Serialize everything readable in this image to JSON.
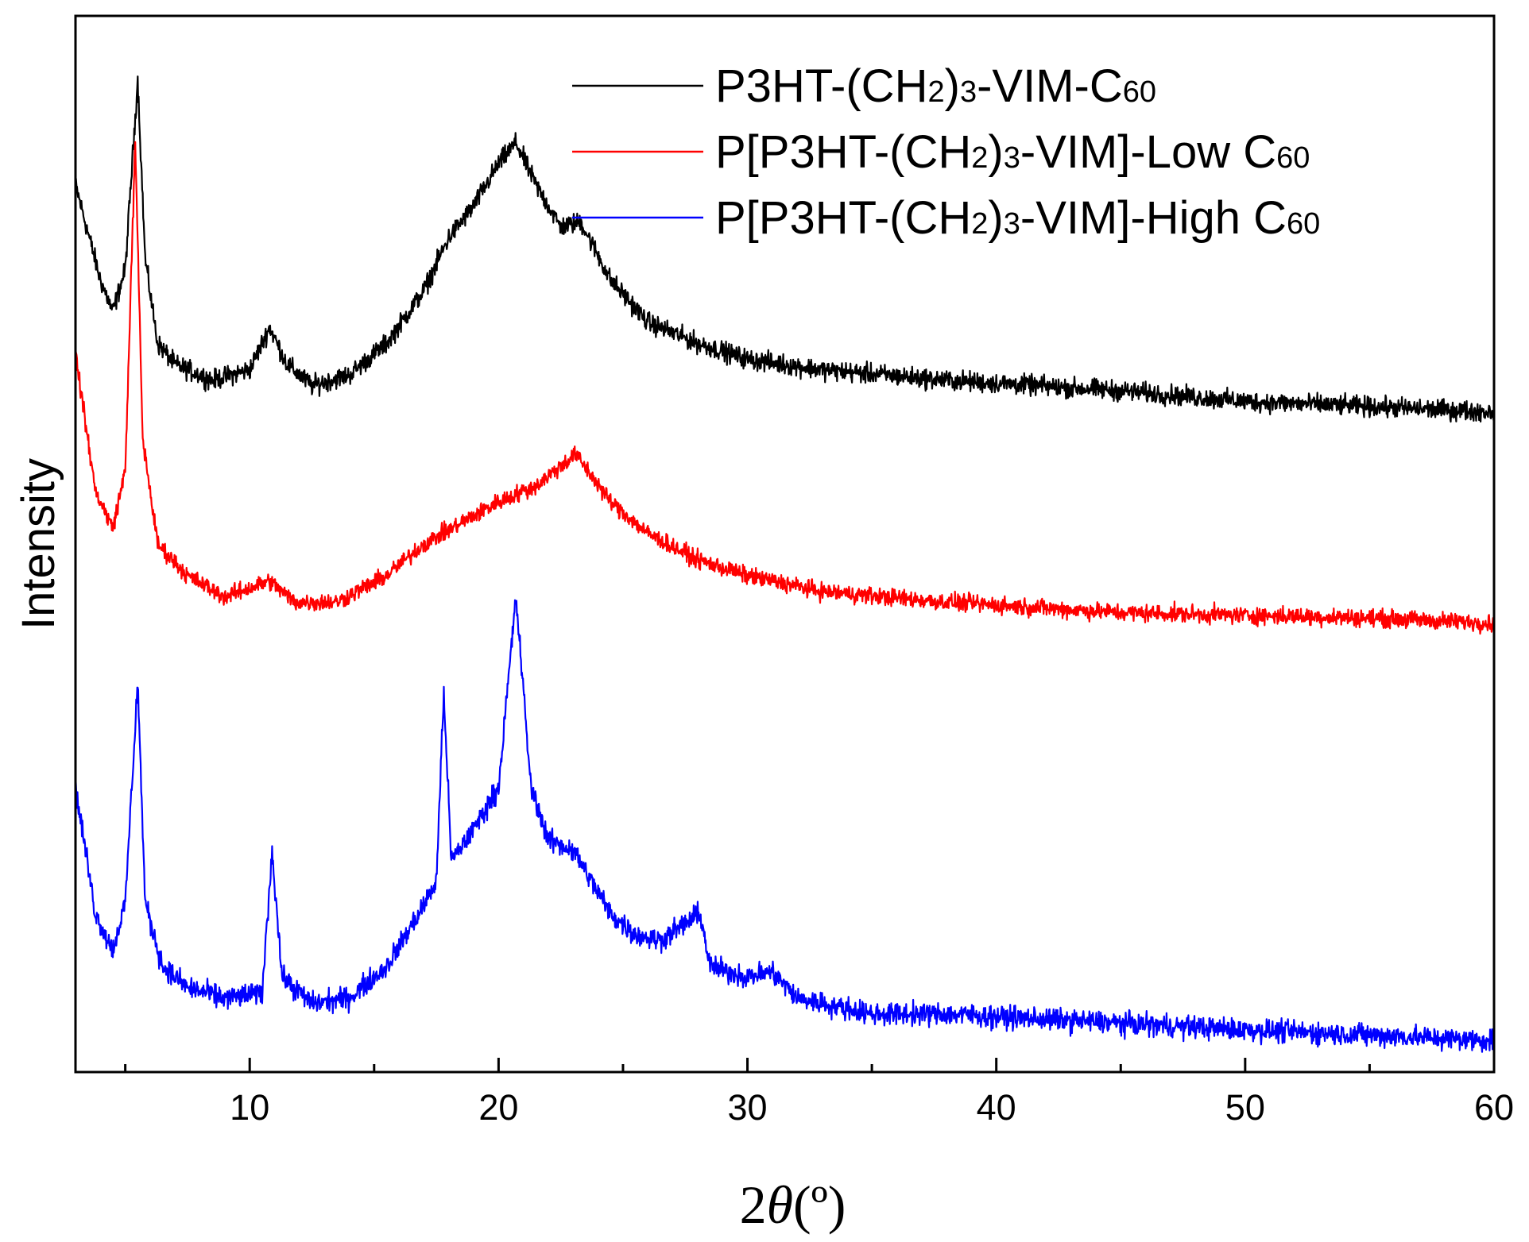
{
  "chart_data": {
    "type": "line",
    "title": "",
    "xlabel_prefix": "2",
    "xlabel_theta": "θ",
    "xlabel_suffix": "(º)",
    "ylabel": "Intensity",
    "xlim": [
      3,
      60
    ],
    "ylim": [
      0,
      100
    ],
    "x_ticks": [
      10,
      20,
      30,
      40,
      50,
      60
    ],
    "x_tick_labels": [
      "10",
      "20",
      "30",
      "40",
      "50",
      "60"
    ],
    "x_minor_ticks": [
      5,
      15,
      25,
      35,
      45,
      55
    ],
    "y_ticks": [],
    "grid": false,
    "legend_position": "top-right",
    "series": [
      {
        "name": "P3HT-(CH2)3-VIM-C60",
        "legend_parts": [
          {
            "t": "P3HT-(CH",
            "sub": false
          },
          {
            "t": "2",
            "sub": true
          },
          {
            "t": ")",
            "sub": false
          },
          {
            "t": "3",
            "sub": true
          },
          {
            "t": "-VIM-C",
            "sub": false
          },
          {
            "t": "60",
            "sub": true
          }
        ],
        "color": "#000000",
        "baseline": 62.5,
        "profile": [
          [
            3,
            84
          ],
          [
            4,
            75
          ],
          [
            4.5,
            72
          ],
          [
            5.0,
            76
          ],
          [
            5.5,
            94
          ],
          [
            5.8,
            77
          ],
          [
            6.3,
            69
          ],
          [
            7,
            67
          ],
          [
            8.5,
            65.5
          ],
          [
            10,
            66.5
          ],
          [
            10.8,
            70.5
          ],
          [
            11.5,
            67
          ],
          [
            12.5,
            65
          ],
          [
            14,
            66
          ],
          [
            15.5,
            69
          ],
          [
            17,
            74
          ],
          [
            18,
            79
          ],
          [
            19,
            82
          ],
          [
            20,
            86
          ],
          [
            20.7,
            88
          ],
          [
            21.5,
            84
          ],
          [
            22.5,
            80
          ],
          [
            23.3,
            80.5
          ],
          [
            24.5,
            75
          ],
          [
            26,
            71
          ],
          [
            28,
            69
          ],
          [
            30,
            67.5
          ],
          [
            33,
            66.5
          ],
          [
            38,
            65.5
          ],
          [
            45,
            64.5
          ],
          [
            50,
            63.5
          ],
          [
            55,
            63
          ],
          [
            60,
            62.5
          ]
        ],
        "noise": 0.8
      },
      {
        "name": "P[P3HT-(CH2)3-VIM]-Low C60",
        "legend_parts": [
          {
            "t": "P[P3HT-(CH",
            "sub": false
          },
          {
            "t": "2",
            "sub": true
          },
          {
            "t": ")",
            "sub": false
          },
          {
            "t": "3",
            "sub": true
          },
          {
            "t": "-VIM]-Low C",
            "sub": false
          },
          {
            "t": "60",
            "sub": true
          }
        ],
        "color": "#ff0000",
        "baseline": 42.5,
        "profile": [
          [
            3,
            68
          ],
          [
            3.8,
            55
          ],
          [
            4.5,
            51.5
          ],
          [
            5.0,
            57
          ],
          [
            5.4,
            88
          ],
          [
            5.7,
            60
          ],
          [
            6.3,
            50
          ],
          [
            7.5,
            47
          ],
          [
            9,
            45
          ],
          [
            10.8,
            46.5
          ],
          [
            11.8,
            44.5
          ],
          [
            13.5,
            44.5
          ],
          [
            15.5,
            47
          ],
          [
            17,
            50
          ],
          [
            18.5,
            52
          ],
          [
            20,
            54
          ],
          [
            21.5,
            55.5
          ],
          [
            23.1,
            58.5
          ],
          [
            24.5,
            54
          ],
          [
            26,
            51
          ],
          [
            28,
            48.5
          ],
          [
            30,
            47
          ],
          [
            33,
            45.5
          ],
          [
            38,
            44.5
          ],
          [
            45,
            43.5
          ],
          [
            55,
            43
          ],
          [
            60,
            42.5
          ]
        ],
        "noise": 0.7
      },
      {
        "name": "P[P3HT-(CH2)3-VIM]-High C60",
        "legend_parts": [
          {
            "t": "P[P3HT-(CH",
            "sub": false
          },
          {
            "t": "2",
            "sub": true
          },
          {
            "t": ")",
            "sub": false
          },
          {
            "t": "3",
            "sub": true
          },
          {
            "t": "-VIM]-High C",
            "sub": false
          },
          {
            "t": "60",
            "sub": true
          }
        ],
        "color": "#0000ff",
        "baseline": 3,
        "profile": [
          [
            3,
            27
          ],
          [
            3.8,
            15
          ],
          [
            4.5,
            11.5
          ],
          [
            5.0,
            16
          ],
          [
            5.5,
            37
          ],
          [
            5.8,
            16
          ],
          [
            6.5,
            10
          ],
          [
            7.5,
            8
          ],
          [
            9,
            7
          ],
          [
            10.5,
            7.5
          ],
          [
            10.9,
            21
          ],
          [
            11.3,
            9
          ],
          [
            12.5,
            6.5
          ],
          [
            14,
            7
          ],
          [
            15.5,
            10
          ],
          [
            16.8,
            15
          ],
          [
            17.5,
            18
          ],
          [
            17.8,
            36
          ],
          [
            18.1,
            20
          ],
          [
            19,
            23
          ],
          [
            20,
            27
          ],
          [
            20.7,
            45
          ],
          [
            21.3,
            27
          ],
          [
            22,
            22
          ],
          [
            23,
            21
          ],
          [
            24.5,
            15
          ],
          [
            25.5,
            13
          ],
          [
            26.5,
            12.5
          ],
          [
            28.1,
            15
          ],
          [
            28.5,
            10
          ],
          [
            30,
            9
          ],
          [
            31,
            9.5
          ],
          [
            32,
            7
          ],
          [
            33,
            6.5
          ],
          [
            35,
            5.5
          ],
          [
            38,
            5.5
          ],
          [
            42,
            5
          ],
          [
            46,
            4.5
          ],
          [
            50,
            4
          ],
          [
            55,
            3.5
          ],
          [
            60,
            3
          ]
        ],
        "noise": 0.9
      }
    ]
  }
}
